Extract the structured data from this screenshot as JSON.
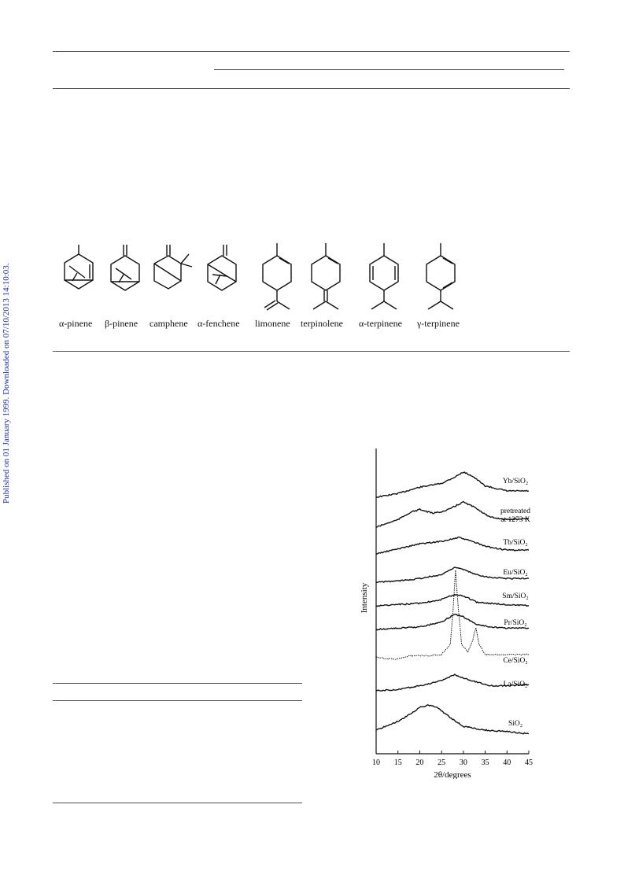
{
  "sidebar": {
    "text": "Published on 01 January 1999. Downloaded on 07/10/2013 14:10:03."
  },
  "molecules": [
    {
      "id": "a-pinene",
      "label": "α-pinene"
    },
    {
      "id": "b-pinene",
      "label": "β-pinene"
    },
    {
      "id": "camphene",
      "label": "camphene"
    },
    {
      "id": "a-fenchene",
      "label": "α-fenchene"
    },
    {
      "id": "limonene",
      "label": "limonene"
    },
    {
      "id": "terpinolene",
      "label": "terpinolene"
    },
    {
      "id": "a-terpinene",
      "label": "α-terpinene"
    },
    {
      "id": "g-terpinene",
      "label": "γ-terpinene"
    }
  ],
  "chart_data": {
    "type": "line",
    "xlabel": "2θ/degrees",
    "ylabel": "Intensity",
    "xlim": [
      10,
      45
    ],
    "xticks": [
      10,
      15,
      20,
      25,
      30,
      35,
      40,
      45
    ],
    "series": [
      {
        "name": "Yb/SiO₂",
        "baseline": 1.0,
        "dashed": false,
        "points": [
          [
            10,
            0
          ],
          [
            15,
            0.3
          ],
          [
            20,
            0.8
          ],
          [
            25,
            1.1
          ],
          [
            28,
            1.6
          ],
          [
            30,
            2.0
          ],
          [
            32,
            1.7
          ],
          [
            35,
            0.9
          ],
          [
            40,
            0.5
          ],
          [
            45,
            0.5
          ]
        ]
      },
      {
        "name": "pretreated at 1273 K",
        "baseline": 1.0,
        "dashed": false,
        "points": [
          [
            10,
            0
          ],
          [
            15,
            0.6
          ],
          [
            18,
            1.2
          ],
          [
            20,
            1.4
          ],
          [
            23,
            1.1
          ],
          [
            26,
            1.3
          ],
          [
            30,
            2.0
          ],
          [
            33,
            1.5
          ],
          [
            36,
            0.8
          ],
          [
            40,
            0.6
          ],
          [
            45,
            0.7
          ]
        ]
      },
      {
        "name": "Tb/SiO₂",
        "baseline": 1.0,
        "dashed": false,
        "points": [
          [
            10,
            0
          ],
          [
            15,
            0.4
          ],
          [
            20,
            0.8
          ],
          [
            25,
            1.0
          ],
          [
            29,
            1.3
          ],
          [
            32,
            1.0
          ],
          [
            35,
            0.6
          ],
          [
            40,
            0.3
          ],
          [
            45,
            0.3
          ]
        ]
      },
      {
        "name": "Eu/SiO₂",
        "baseline": 1.0,
        "dashed": false,
        "points": [
          [
            10,
            0
          ],
          [
            15,
            0.1
          ],
          [
            20,
            0.3
          ],
          [
            25,
            0.6
          ],
          [
            28,
            1.2
          ],
          [
            30,
            1.0
          ],
          [
            33,
            0.6
          ],
          [
            36,
            0.4
          ],
          [
            40,
            0.3
          ],
          [
            45,
            0.3
          ]
        ]
      },
      {
        "name": "Sm/SiO₂",
        "baseline": 1.0,
        "dashed": false,
        "points": [
          [
            10,
            0
          ],
          [
            15,
            0.1
          ],
          [
            20,
            0.2
          ],
          [
            25,
            0.5
          ],
          [
            28,
            0.9
          ],
          [
            30,
            0.8
          ],
          [
            33,
            0.3
          ],
          [
            36,
            0.2
          ],
          [
            40,
            0.1
          ],
          [
            45,
            0.0
          ]
        ]
      },
      {
        "name": "Pr/SiO₂",
        "baseline": 1.0,
        "dashed": false,
        "points": [
          [
            10,
            0
          ],
          [
            15,
            0.1
          ],
          [
            20,
            0.2
          ],
          [
            25,
            0.6
          ],
          [
            28,
            1.2
          ],
          [
            30,
            1.0
          ],
          [
            33,
            0.4
          ],
          [
            36,
            0.2
          ],
          [
            40,
            0.1
          ],
          [
            45,
            0.1
          ]
        ]
      },
      {
        "name": "Ce/SiO₂",
        "baseline": 1.0,
        "dashed": true,
        "points": [
          [
            10,
            0
          ],
          [
            14,
            -0.2
          ],
          [
            18,
            0.1
          ],
          [
            22,
            0.1
          ],
          [
            25,
            0.2
          ],
          [
            27,
            1.0
          ],
          [
            27.6,
            3.5
          ],
          [
            28.2,
            6.9
          ],
          [
            28.8,
            4.0
          ],
          [
            29.6,
            1.0
          ],
          [
            31,
            0.4
          ],
          [
            32,
            1.2
          ],
          [
            32.9,
            2.3
          ],
          [
            33.6,
            1.0
          ],
          [
            35,
            0.2
          ],
          [
            40,
            0.2
          ],
          [
            45,
            0.2
          ]
        ]
      },
      {
        "name": "La/SiO₂",
        "baseline": 1.0,
        "dashed": false,
        "points": [
          [
            10,
            0
          ],
          [
            15,
            0.1
          ],
          [
            20,
            0.4
          ],
          [
            25,
            0.8
          ],
          [
            28,
            1.3
          ],
          [
            30,
            1.0
          ],
          [
            33,
            0.7
          ],
          [
            36,
            0.4
          ],
          [
            40,
            0.4
          ],
          [
            45,
            0.5
          ]
        ]
      },
      {
        "name": "SiO₂",
        "baseline": 1.0,
        "dashed": false,
        "points": [
          [
            10,
            0
          ],
          [
            15,
            0.7
          ],
          [
            18,
            1.3
          ],
          [
            20,
            1.8
          ],
          [
            22,
            2.0
          ],
          [
            24,
            1.8
          ],
          [
            27,
            1.0
          ],
          [
            30,
            0.3
          ],
          [
            35,
            0.0
          ],
          [
            40,
            -0.1
          ],
          [
            45,
            -0.3
          ]
        ]
      }
    ]
  }
}
